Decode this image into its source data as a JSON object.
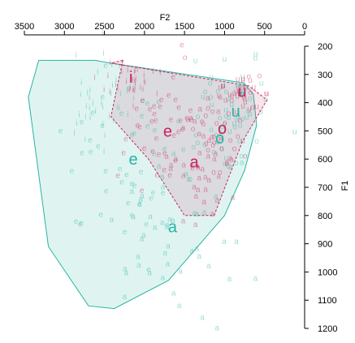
{
  "chart_data": {
    "type": "scatter",
    "title": "",
    "xlabel": "F2",
    "ylabel": "F1",
    "xlim": [
      3500,
      0
    ],
    "ylim": [
      200,
      1200
    ],
    "x_axis_position": "top",
    "y_axis_position": "right",
    "x_ticks": [
      3500,
      3000,
      2500,
      2000,
      1500,
      1000,
      500,
      0
    ],
    "y_ticks": [
      200,
      300,
      400,
      500,
      600,
      700,
      800,
      900,
      1000,
      1100,
      1200
    ],
    "grid": false,
    "legend": "none",
    "series": [
      {
        "color": "#2ab3a3",
        "fill": "rgba(42,179,163,0.15)",
        "hull_dash": false,
        "hull": [
          [
            2620,
            250
          ],
          [
            2420,
            260
          ],
          [
            760,
            330
          ],
          [
            640,
            370
          ],
          [
            600,
            480
          ],
          [
            750,
            640
          ],
          [
            1000,
            800
          ],
          [
            1700,
            1030
          ],
          [
            2380,
            1130
          ],
          [
            2700,
            1120
          ],
          [
            3200,
            910
          ],
          [
            3450,
            380
          ],
          [
            3320,
            250
          ]
        ],
        "vowels": [
          {
            "label": "i",
            "centroid": [
              2590,
              400
            ],
            "spread": [
              230,
              90
            ],
            "count": 38
          },
          {
            "label": "e",
            "centroid": [
              2200,
              600
            ],
            "spread": [
              400,
              160
            ],
            "count": 48
          },
          {
            "label": "a",
            "centroid": [
              1600,
              860
            ],
            "spread": [
              430,
              160
            ],
            "count": 48
          },
          {
            "label": "o",
            "centroid": [
              1050,
              500
            ],
            "spread": [
              260,
              120
            ],
            "count": 34
          },
          {
            "label": "u",
            "centroid": [
              820,
              420
            ],
            "spread": [
              200,
              80
            ],
            "count": 30
          }
        ],
        "centroid_labels": [
          {
            "label": "e",
            "x": 2140,
            "y": 620
          },
          {
            "label": "a",
            "x": 1650,
            "y": 860
          },
          {
            "label": "o",
            "x": 1060,
            "y": 545
          },
          {
            "label": "u",
            "x": 860,
            "y": 450
          }
        ]
      },
      {
        "color": "#c8245a",
        "fill": "rgba(200,36,90,0.12)",
        "hull_dash": true,
        "hull": [
          [
            2270,
            250
          ],
          [
            2420,
            260
          ],
          [
            700,
            340
          ],
          [
            470,
            390
          ],
          [
            780,
            540
          ],
          [
            1130,
            800
          ],
          [
            1500,
            800
          ],
          [
            1950,
            600
          ],
          [
            2420,
            450
          ]
        ],
        "vowels": [
          {
            "label": "i",
            "centroid": [
              2150,
              330
            ],
            "spread": [
              170,
              40
            ],
            "count": 34
          },
          {
            "label": "e",
            "centroid": [
              1800,
              510
            ],
            "spread": [
              260,
              90
            ],
            "count": 40
          },
          {
            "label": "a",
            "centroid": [
              1300,
              630
            ],
            "spread": [
              230,
              90
            ],
            "count": 40
          },
          {
            "label": "o",
            "centroid": [
              1000,
              480
            ],
            "spread": [
              220,
              90
            ],
            "count": 32
          },
          {
            "label": "u",
            "centroid": [
              850,
              380
            ],
            "spread": [
              180,
              50
            ],
            "count": 30
          }
        ],
        "centroid_labels": [
          {
            "label": "i",
            "x": 2170,
            "y": 330
          },
          {
            "label": "e",
            "x": 1710,
            "y": 520
          },
          {
            "label": "a",
            "x": 1380,
            "y": 630
          },
          {
            "label": "o",
            "x": 1030,
            "y": 510
          },
          {
            "label": "u",
            "x": 780,
            "y": 380
          }
        ]
      }
    ]
  }
}
